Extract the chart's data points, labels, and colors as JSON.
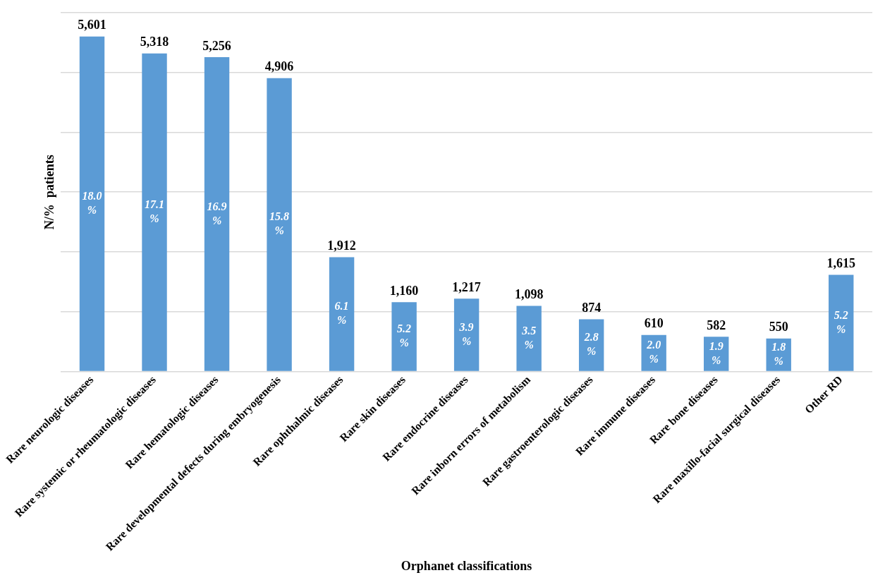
{
  "chart_data": {
    "type": "bar",
    "xlabel": "Orphanet classifications",
    "ylabel": "N/%  patients",
    "categories": [
      "Rare neurologic diseases",
      "Rare systemic or rheumatologic diseases",
      "Rare hematologic diseases",
      "Rare developmental defects during embryogenesis",
      "Rare ophthalmic diseases",
      "Rare skin diseases",
      "Rare endocrine diseases",
      "Rare inborn errors of metabolism",
      "Rare gastroenterologic diseases",
      "Rare immune diseases",
      "Rare bone diseases",
      "Rare maxillo-facial surgical diseases",
      "Other RD"
    ],
    "values": [
      5601,
      5318,
      5256,
      4906,
      1912,
      1160,
      1217,
      1098,
      874,
      610,
      582,
      550,
      1615
    ],
    "value_labels": [
      "5,601",
      "5,318",
      "5,256",
      "4,906",
      "1,912",
      "1,160",
      "1,217",
      "1,098",
      "874",
      "610",
      "582",
      "550",
      "1,615"
    ],
    "color": "#5b9bd5",
    "ylim": [
      0,
      6000
    ],
    "yticks": [
      {
        "value": 0,
        "label": null
      },
      {
        "value": 1000,
        "label": null
      },
      {
        "value": 2000,
        "label": null
      },
      {
        "value": 3000,
        "label": null
      },
      {
        "value": 4000,
        "label": null
      },
      {
        "value": 5000,
        "label": null
      },
      {
        "value": 6000,
        "label": null
      }
    ],
    "grid": "y",
    "tick_labels": "x",
    "annotations": [
      "18.0 %",
      "17.1 %",
      "16.9 %",
      "15.8 %",
      "6.1 %",
      "5.2 %",
      "3.9 %",
      "3.5 %",
      "2.8 %",
      "2.0 %",
      "1.9 %",
      "1.8 %",
      "5.2 %"
    ]
  }
}
